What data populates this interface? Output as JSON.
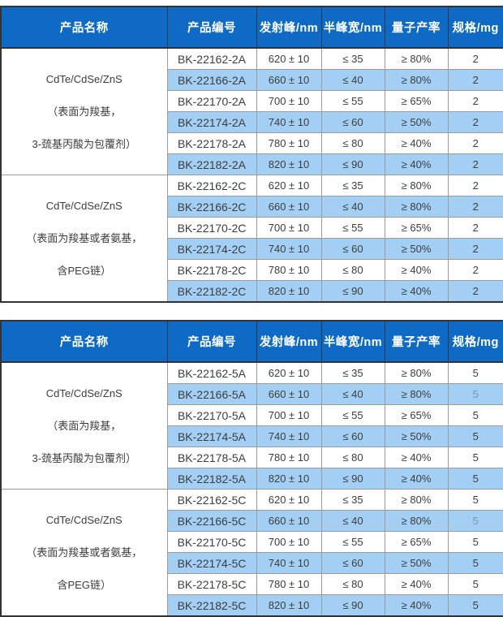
{
  "colors": {
    "header_bg": "#0E6AC4",
    "header_text": "#FFFFFF",
    "row_highlight": "#A4CFF4",
    "text": "#3D3D3D",
    "muted_text": "#7E92A8",
    "grid_line": "#9B9B9B",
    "header_grid": "#2B3947",
    "outer_border": "#333333"
  },
  "columns": [
    "产品名称",
    "产品编号",
    "发射峰/nm",
    "半峰宽/nm",
    "量子产率",
    "规格/mg"
  ],
  "tables": [
    {
      "groups": [
        {
          "name_lines": [
            "CdTe/CdSe/ZnS",
            "（表面为羧基，",
            "3-巯基丙酸为包覆剂）"
          ],
          "rows": [
            {
              "code": "BK-22162-2A",
              "emission": "620 ± 10",
              "fwhm": "≤ 35",
              "qy": "≥ 80%",
              "spec": "2",
              "highlight": false,
              "spec_muted": false
            },
            {
              "code": "BK-22166-2A",
              "emission": "660 ± 10",
              "fwhm": "≤ 40",
              "qy": "≥ 80%",
              "spec": "2",
              "highlight": true,
              "spec_muted": false
            },
            {
              "code": "BK-22170-2A",
              "emission": "700 ± 10",
              "fwhm": "≤ 55",
              "qy": "≥ 65%",
              "spec": "2",
              "highlight": false,
              "spec_muted": false
            },
            {
              "code": "BK-22174-2A",
              "emission": "740 ± 10",
              "fwhm": "≤ 60",
              "qy": "≥ 50%",
              "spec": "2",
              "highlight": true,
              "spec_muted": false
            },
            {
              "code": "BK-22178-2A",
              "emission": "780 ± 10",
              "fwhm": "≤ 80",
              "qy": "≥ 40%",
              "spec": "2",
              "highlight": false,
              "spec_muted": false
            },
            {
              "code": "BK-22182-2A",
              "emission": "820 ± 10",
              "fwhm": "≤ 90",
              "qy": "≥ 40%",
              "spec": "2",
              "highlight": true,
              "spec_muted": false
            }
          ]
        },
        {
          "name_lines": [
            "CdTe/CdSe/ZnS",
            "（表面为羧基或者氨基，",
            "含PEG链）"
          ],
          "rows": [
            {
              "code": "BK-22162-2C",
              "emission": "620 ± 10",
              "fwhm": "≤ 35",
              "qy": "≥ 80%",
              "spec": "2",
              "highlight": false,
              "spec_muted": false
            },
            {
              "code": "BK-22166-2C",
              "emission": "660 ± 10",
              "fwhm": "≤ 40",
              "qy": "≥ 80%",
              "spec": "2",
              "highlight": true,
              "spec_muted": false
            },
            {
              "code": "BK-22170-2C",
              "emission": "700 ± 10",
              "fwhm": "≤ 55",
              "qy": "≥ 65%",
              "spec": "2",
              "highlight": false,
              "spec_muted": false
            },
            {
              "code": "BK-22174-2C",
              "emission": "740 ± 10",
              "fwhm": "≤ 60",
              "qy": "≥ 50%",
              "spec": "2",
              "highlight": true,
              "spec_muted": false
            },
            {
              "code": "BK-22178-2C",
              "emission": "780 ± 10",
              "fwhm": "≤ 80",
              "qy": "≥ 40%",
              "spec": "2",
              "highlight": false,
              "spec_muted": false
            },
            {
              "code": "BK-22182-2C",
              "emission": "820 ± 10",
              "fwhm": "≤ 90",
              "qy": "≥ 40%",
              "spec": "2",
              "highlight": true,
              "spec_muted": false
            }
          ]
        }
      ]
    },
    {
      "groups": [
        {
          "name_lines": [
            "CdTe/CdSe/ZnS",
            "（表面为羧基，",
            "3-巯基丙酸为包覆剂）"
          ],
          "rows": [
            {
              "code": "BK-22162-5A",
              "emission": "620 ± 10",
              "fwhm": "≤ 35",
              "qy": "≥ 80%",
              "spec": "5",
              "highlight": false,
              "spec_muted": false
            },
            {
              "code": "BK-22166-5A",
              "emission": "660 ± 10",
              "fwhm": "≤ 40",
              "qy": "≥ 80%",
              "spec": "5",
              "highlight": true,
              "spec_muted": true
            },
            {
              "code": "BK-22170-5A",
              "emission": "700 ± 10",
              "fwhm": "≤ 55",
              "qy": "≥ 65%",
              "spec": "5",
              "highlight": false,
              "spec_muted": false
            },
            {
              "code": "BK-22174-5A",
              "emission": "740 ± 10",
              "fwhm": "≤ 60",
              "qy": "≥ 50%",
              "spec": "5",
              "highlight": true,
              "spec_muted": false
            },
            {
              "code": "BK-22178-5A",
              "emission": "780 ± 10",
              "fwhm": "≤ 80",
              "qy": "≥ 40%",
              "spec": "5",
              "highlight": false,
              "spec_muted": false
            },
            {
              "code": "BK-22182-5A",
              "emission": "820 ± 10",
              "fwhm": "≤ 90",
              "qy": "≥ 40%",
              "spec": "5",
              "highlight": true,
              "spec_muted": false
            }
          ]
        },
        {
          "name_lines": [
            "CdTe/CdSe/ZnS",
            "（表面为羧基或者氨基，",
            "含PEG链）"
          ],
          "rows": [
            {
              "code": "BK-22162-5C",
              "emission": "620 ± 10",
              "fwhm": "≤ 35",
              "qy": "≥ 80%",
              "spec": "5",
              "highlight": false,
              "spec_muted": false
            },
            {
              "code": "BK-22166-5C",
              "emission": "660 ± 10",
              "fwhm": "≤ 40",
              "qy": "≥ 80%",
              "spec": "5",
              "highlight": true,
              "spec_muted": true
            },
            {
              "code": "BK-22170-5C",
              "emission": "700 ± 10",
              "fwhm": "≤ 55",
              "qy": "≥ 65%",
              "spec": "5",
              "highlight": false,
              "spec_muted": false
            },
            {
              "code": "BK-22174-5C",
              "emission": "740 ± 10",
              "fwhm": "≤ 60",
              "qy": "≥ 50%",
              "spec": "5",
              "highlight": true,
              "spec_muted": false
            },
            {
              "code": "BK-22178-5C",
              "emission": "780 ± 10",
              "fwhm": "≤ 80",
              "qy": "≥ 40%",
              "spec": "5",
              "highlight": false,
              "spec_muted": false
            },
            {
              "code": "BK-22182-5C",
              "emission": "820 ± 10",
              "fwhm": "≤ 90",
              "qy": "≥ 40%",
              "spec": "5",
              "highlight": true,
              "spec_muted": false
            }
          ]
        }
      ]
    }
  ]
}
